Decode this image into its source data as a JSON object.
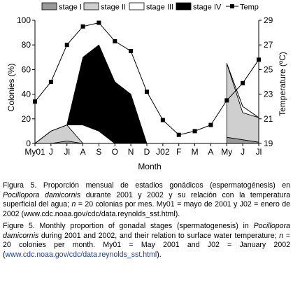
{
  "chart_data": {
    "type": "area",
    "categories": [
      "My01",
      "J",
      "Jl",
      "A",
      "S",
      "O",
      "N",
      "D",
      "J02",
      "F",
      "M",
      "A",
      "My",
      "J",
      "Jl"
    ],
    "xlabel": "Month",
    "ylabel": "Colonies (%)",
    "y2label": "Temperature (ºC)",
    "ylim": [
      0,
      100
    ],
    "y2lim": [
      19,
      29
    ],
    "yticks": [
      0,
      20,
      40,
      60,
      80,
      100
    ],
    "y2ticks": [
      19,
      21,
      23,
      25,
      27,
      29
    ],
    "legend_position": "top",
    "grid": false,
    "series": [
      {
        "name": "stage I",
        "kind": "stacked-area",
        "color": "#9a9a9a",
        "values": [
          0,
          0,
          2,
          0,
          0,
          0,
          0,
          0,
          null,
          null,
          null,
          null,
          5,
          3,
          1
        ]
      },
      {
        "name": "stage II",
        "kind": "stacked-area",
        "color": "#cfcfcf",
        "values": [
          0,
          10,
          13,
          0,
          0,
          0,
          0,
          0,
          null,
          null,
          null,
          null,
          60,
          22,
          20
        ]
      },
      {
        "name": "stage III",
        "kind": "stacked-area",
        "color": "#ffffff",
        "values": [
          0,
          0,
          0,
          15,
          10,
          0,
          0,
          0,
          null,
          null,
          null,
          null,
          0,
          5,
          0
        ]
      },
      {
        "name": "stage IV",
        "kind": "stacked-area",
        "color": "#000000",
        "values": [
          0,
          0,
          0,
          55,
          70,
          50,
          40,
          0,
          null,
          null,
          null,
          null,
          0,
          0,
          0
        ]
      },
      {
        "name": "Temp",
        "kind": "line",
        "axis": "right",
        "color": "#000000",
        "values": [
          22.4,
          24.0,
          27.0,
          28.5,
          28.8,
          27.3,
          26.5,
          23.2,
          20.9,
          19.7,
          20.0,
          20.5,
          22.5,
          23.9,
          25.8
        ]
      }
    ]
  },
  "caption_es": {
    "fig_label": "Figura 5.",
    "part1": " Proporción mensual de estadios gonádicos (espermatogénesis) en ",
    "species": "Pocillopora damicornis",
    "part2": " durante 2001 y 2002 y su relación con la temperatura superficial del agua; ",
    "n": "n",
    "part3": " = 20 colonias por mes. My01 = mayo de 2001 y J02 = enero de 2002 (www.cdc.noaa.gov/cdc/data.reynolds_sst.html)."
  },
  "caption_en": {
    "fig_label": "Figure 5.",
    "part1": " Monthly proportion of gonadal stages (spermatogenesis) in ",
    "species": "Pocillopora damicornis",
    "part2": " during 2001 and 2002, and their relation to surface water temperature; ",
    "n": "n",
    "part3": " = 20 colonies per month. My01 = May 2001 and J02 = January 2002 (",
    "link": "www.cdc.noaa.gov/cdc/data.reynolds_sst.html",
    "part4": ")."
  }
}
